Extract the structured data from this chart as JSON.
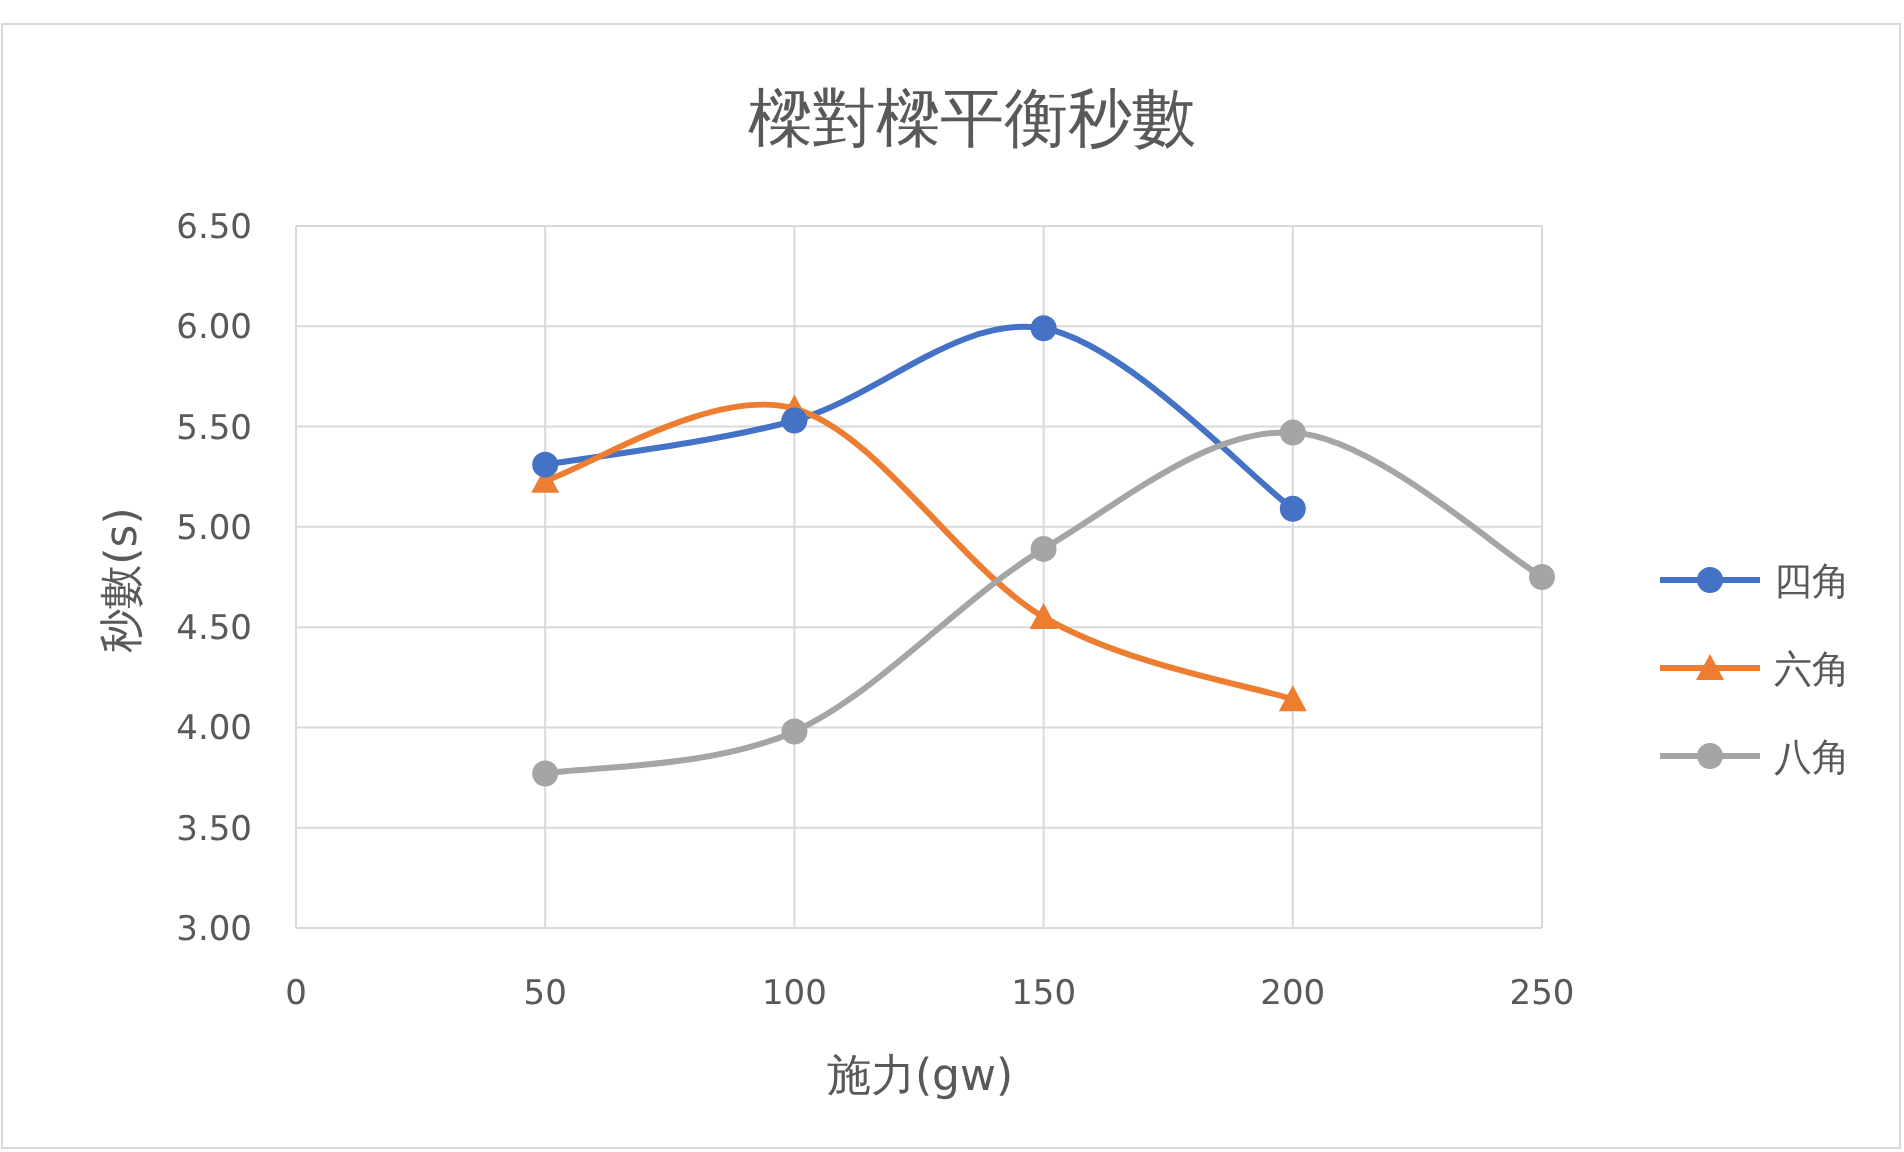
{
  "chart_data": {
    "type": "line",
    "title": "樑對樑平衡秒數",
    "xlabel": "施力(gw)",
    "ylabel": "秒數(s)",
    "x": [
      50,
      100,
      150,
      200,
      250
    ],
    "xlim": [
      0,
      250
    ],
    "xticks": [
      0,
      50,
      100,
      150,
      200,
      250
    ],
    "ylim": [
      3,
      6.5
    ],
    "yticks": [
      {
        "value": 3,
        "label": "3.00"
      },
      {
        "value": 3.5,
        "label": "3.50"
      },
      {
        "value": 4,
        "label": "4.00"
      },
      {
        "value": 4.5,
        "label": "4.50"
      },
      {
        "value": 5,
        "label": "5.00"
      },
      {
        "value": 5.5,
        "label": "5.50"
      },
      {
        "value": 6,
        "label": "6.00"
      },
      {
        "value": 6.5,
        "label": "6.50"
      }
    ],
    "grid": true,
    "legend": "right",
    "series": [
      {
        "name": "四角",
        "color": "#4472c4",
        "marker": "circle",
        "values": [
          5.31,
          5.53,
          5.99,
          5.09,
          null
        ]
      },
      {
        "name": "六角",
        "color": "#ed7d31",
        "marker": "triangle",
        "values": [
          5.23,
          5.59,
          4.55,
          4.14,
          null
        ]
      },
      {
        "name": "八角",
        "color": "#a5a5a5",
        "marker": "circle",
        "values": [
          3.77,
          3.98,
          4.89,
          5.47,
          4.75
        ]
      }
    ]
  }
}
